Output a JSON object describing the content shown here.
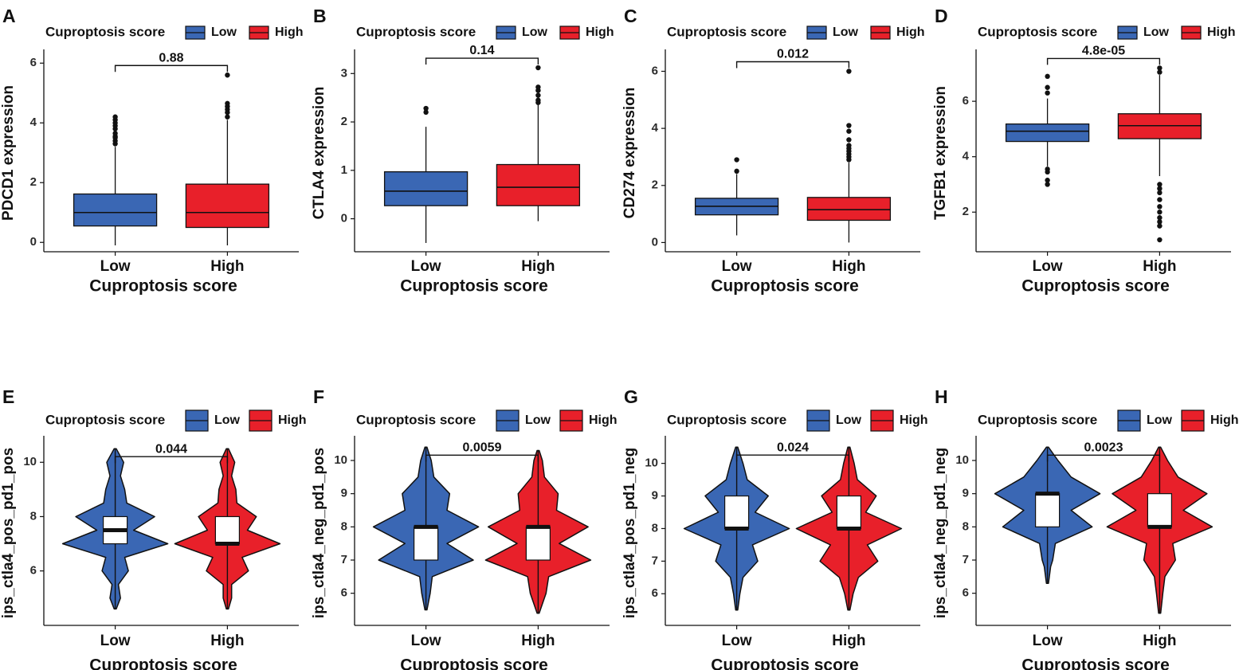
{
  "colors": {
    "low": "#3A67B4",
    "high": "#E8202A",
    "box_inner": "#ffffff",
    "ink": "#111111"
  },
  "chart_data": [
    {
      "panel": "A",
      "type": "boxplot",
      "legend_title": "Cuproptosis score",
      "legend_labels": [
        "Low",
        "High"
      ],
      "categories": [
        "Low",
        "High"
      ],
      "xlabel": "Cuproptosis score",
      "ylabel": "PDCD1 expression",
      "yticks": [
        0,
        2,
        4,
        6
      ],
      "ylim": [
        -0.1,
        6.3
      ],
      "series": [
        {
          "name": "Low",
          "q1": 0.55,
          "median": 1.0,
          "q3": 1.62,
          "whisker_low": -0.1,
          "whisker_high": 3.2,
          "outliers": [
            3.3,
            3.4,
            3.5,
            3.55,
            3.65,
            3.8,
            3.9,
            4.0,
            4.1,
            4.2
          ]
        },
        {
          "name": "High",
          "q1": 0.5,
          "median": 1.0,
          "q3": 1.95,
          "whisker_low": -0.1,
          "whisker_high": 4.1,
          "outliers": [
            4.2,
            4.35,
            4.45,
            4.55,
            4.65,
            5.6
          ]
        }
      ],
      "pvalue": "0.88"
    },
    {
      "panel": "B",
      "type": "boxplot",
      "legend_title": "Cuproptosis score",
      "legend_labels": [
        "Low",
        "High"
      ],
      "categories": [
        "Low",
        "High"
      ],
      "xlabel": "Cuproptosis score",
      "ylabel": "CTLA4 expression",
      "yticks": [
        0,
        1,
        2,
        3
      ],
      "ylim": [
        -0.55,
        3.4
      ],
      "series": [
        {
          "name": "Low",
          "q1": 0.27,
          "median": 0.57,
          "q3": 0.97,
          "whisker_low": -0.5,
          "whisker_high": 1.9,
          "outliers": [
            2.2,
            2.28
          ]
        },
        {
          "name": "High",
          "q1": 0.27,
          "median": 0.65,
          "q3": 1.12,
          "whisker_low": -0.05,
          "whisker_high": 2.35,
          "outliers": [
            2.4,
            2.45,
            2.55,
            2.65,
            2.72,
            3.12
          ]
        }
      ],
      "pvalue": "0.14"
    },
    {
      "panel": "C",
      "type": "boxplot",
      "legend_title": "Cuproptosis score",
      "legend_labels": [
        "Low",
        "High"
      ],
      "categories": [
        "Low",
        "High"
      ],
      "xlabel": "Cuproptosis score",
      "ylabel": "CD274 expression",
      "yticks": [
        0,
        2,
        4,
        6
      ],
      "ylim": [
        -0.1,
        6.6
      ],
      "series": [
        {
          "name": "Low",
          "q1": 0.97,
          "median": 1.27,
          "q3": 1.55,
          "whisker_low": 0.25,
          "whisker_high": 2.4,
          "outliers": [
            2.5,
            2.9
          ]
        },
        {
          "name": "High",
          "q1": 0.78,
          "median": 1.15,
          "q3": 1.58,
          "whisker_low": 0.0,
          "whisker_high": 2.8,
          "outliers": [
            2.9,
            3.0,
            3.1,
            3.2,
            3.3,
            3.4,
            3.6,
            3.9,
            4.1,
            6.0
          ]
        }
      ],
      "pvalue": "0.012"
    },
    {
      "panel": "D",
      "type": "boxplot",
      "legend_title": "Cuproptosis score",
      "legend_labels": [
        "Low",
        "High"
      ],
      "categories": [
        "Low",
        "High"
      ],
      "xlabel": "Cuproptosis score",
      "ylabel": "TGFB1 expression",
      "yticks": [
        2,
        4,
        6
      ],
      "ylim": [
        0.8,
        7.7
      ],
      "series": [
        {
          "name": "Low",
          "q1": 4.55,
          "median": 4.92,
          "q3": 5.18,
          "whisker_low": 3.65,
          "whisker_high": 6.1,
          "outliers": [
            3.0,
            3.15,
            3.45,
            3.55,
            6.3,
            6.5,
            6.9
          ]
        },
        {
          "name": "High",
          "q1": 4.65,
          "median": 5.12,
          "q3": 5.55,
          "whisker_low": 3.3,
          "whisker_high": 6.95,
          "outliers": [
            1.0,
            1.5,
            1.65,
            1.8,
            2.0,
            2.2,
            2.45,
            2.7,
            2.85,
            3.0,
            7.05,
            7.2
          ]
        }
      ],
      "pvalue": "4.8e-05"
    },
    {
      "panel": "E",
      "type": "violin",
      "legend_title": "Cuproptosis score",
      "legend_labels": [
        "Low",
        "High"
      ],
      "categories": [
        "Low",
        "High"
      ],
      "xlabel": "Cuproptosis score",
      "ylabel": "ips_ctla4_pos_pd1_pos",
      "yticks": [
        6,
        8,
        10
      ],
      "ylim": [
        4.2,
        10.8
      ],
      "series": [
        {
          "name": "Low",
          "ymin": 4.6,
          "ymax": 10.5,
          "q1": 7.0,
          "median": 7.5,
          "q3": 8.0,
          "density": [
            [
              4.6,
              0.02
            ],
            [
              5.0,
              0.1
            ],
            [
              5.5,
              0.06
            ],
            [
              6.0,
              0.25
            ],
            [
              6.5,
              0.18
            ],
            [
              7.0,
              1.0
            ],
            [
              7.5,
              0.35
            ],
            [
              8.0,
              0.75
            ],
            [
              8.5,
              0.22
            ],
            [
              9.0,
              0.18
            ],
            [
              9.5,
              0.1
            ],
            [
              10.0,
              0.16
            ],
            [
              10.5,
              0.02
            ]
          ]
        },
        {
          "name": "High",
          "ymin": 4.6,
          "ymax": 10.5,
          "q1": 7.0,
          "median": 7.0,
          "q3": 8.0,
          "density": [
            [
              4.6,
              0.02
            ],
            [
              5.0,
              0.08
            ],
            [
              5.5,
              0.08
            ],
            [
              6.0,
              0.4
            ],
            [
              6.5,
              0.28
            ],
            [
              7.0,
              1.0
            ],
            [
              7.5,
              0.38
            ],
            [
              8.0,
              0.55
            ],
            [
              8.5,
              0.18
            ],
            [
              9.0,
              0.16
            ],
            [
              9.5,
              0.08
            ],
            [
              10.0,
              0.14
            ],
            [
              10.5,
              0.02
            ]
          ]
        }
      ],
      "pvalue": "0.044"
    },
    {
      "panel": "F",
      "type": "violin",
      "legend_title": "Cuproptosis score",
      "legend_labels": [
        "Low",
        "High"
      ],
      "categories": [
        "Low",
        "High"
      ],
      "xlabel": "Cuproptosis score",
      "ylabel": "ips_ctla4_neg_pd1_pos",
      "yticks": [
        6,
        7,
        8,
        9,
        10
      ],
      "ylim": [
        5.2,
        10.6
      ],
      "series": [
        {
          "name": "Low",
          "ymin": 5.5,
          "ymax": 10.4,
          "q1": 7.0,
          "median": 8.0,
          "q3": 8.0,
          "density": [
            [
              5.5,
              0.02
            ],
            [
              6.0,
              0.08
            ],
            [
              6.5,
              0.12
            ],
            [
              7.0,
              0.9
            ],
            [
              7.5,
              0.4
            ],
            [
              8.0,
              1.0
            ],
            [
              8.5,
              0.4
            ],
            [
              9.0,
              0.45
            ],
            [
              9.5,
              0.15
            ],
            [
              10.0,
              0.1
            ],
            [
              10.4,
              0.02
            ]
          ]
        },
        {
          "name": "High",
          "ymin": 5.4,
          "ymax": 10.3,
          "q1": 7.0,
          "median": 8.0,
          "q3": 8.0,
          "density": [
            [
              5.4,
              0.02
            ],
            [
              6.0,
              0.15
            ],
            [
              6.5,
              0.2
            ],
            [
              7.0,
              1.0
            ],
            [
              7.5,
              0.4
            ],
            [
              8.0,
              0.95
            ],
            [
              8.5,
              0.35
            ],
            [
              9.0,
              0.38
            ],
            [
              9.5,
              0.12
            ],
            [
              10.0,
              0.08
            ],
            [
              10.3,
              0.02
            ]
          ]
        }
      ],
      "pvalue": "0.0059"
    },
    {
      "panel": "G",
      "type": "violin",
      "legend_title": "Cuproptosis score",
      "legend_labels": [
        "Low",
        "High"
      ],
      "categories": [
        "Low",
        "High"
      ],
      "xlabel": "Cuproptosis score",
      "ylabel": "ips_ctla4_pos_pd1_neg",
      "yticks": [
        6,
        7,
        8,
        9,
        10
      ],
      "ylim": [
        5.2,
        10.7
      ],
      "series": [
        {
          "name": "Low",
          "ymin": 5.5,
          "ymax": 10.5,
          "q1": 8.0,
          "median": 8.0,
          "q3": 9.0,
          "density": [
            [
              5.5,
              0.02
            ],
            [
              6.0,
              0.06
            ],
            [
              6.5,
              0.12
            ],
            [
              7.0,
              0.4
            ],
            [
              7.5,
              0.3
            ],
            [
              8.0,
              1.0
            ],
            [
              8.5,
              0.35
            ],
            [
              9.0,
              0.6
            ],
            [
              9.5,
              0.2
            ],
            [
              10.0,
              0.12
            ],
            [
              10.5,
              0.02
            ]
          ]
        },
        {
          "name": "High",
          "ymin": 5.5,
          "ymax": 10.5,
          "q1": 8.0,
          "median": 8.0,
          "q3": 9.0,
          "density": [
            [
              5.5,
              0.02
            ],
            [
              6.0,
              0.08
            ],
            [
              6.5,
              0.18
            ],
            [
              7.0,
              0.55
            ],
            [
              7.5,
              0.35
            ],
            [
              8.0,
              1.0
            ],
            [
              8.5,
              0.32
            ],
            [
              9.0,
              0.52
            ],
            [
              9.5,
              0.16
            ],
            [
              10.0,
              0.1
            ],
            [
              10.5,
              0.02
            ]
          ]
        }
      ],
      "pvalue": "0.024"
    },
    {
      "panel": "H",
      "type": "violin",
      "legend_title": "Cuproptosis score",
      "legend_labels": [
        "Low",
        "High"
      ],
      "categories": [
        "Low",
        "High"
      ],
      "xlabel": "Cuproptosis score",
      "ylabel": "ips_ctla4_neg_pd1_neg",
      "yticks": [
        6,
        7,
        8,
        9,
        10
      ],
      "ylim": [
        5.2,
        10.6
      ],
      "series": [
        {
          "name": "Low",
          "ymin": 6.3,
          "ymax": 10.4,
          "q1": 8.0,
          "median": 9.0,
          "q3": 9.0,
          "density": [
            [
              6.3,
              0.02
            ],
            [
              6.8,
              0.06
            ],
            [
              7.0,
              0.1
            ],
            [
              7.5,
              0.15
            ],
            [
              8.0,
              0.85
            ],
            [
              8.5,
              0.45
            ],
            [
              9.0,
              1.0
            ],
            [
              9.5,
              0.45
            ],
            [
              10.0,
              0.2
            ],
            [
              10.4,
              0.02
            ]
          ]
        },
        {
          "name": "High",
          "ymin": 5.4,
          "ymax": 10.4,
          "q1": 8.0,
          "median": 8.0,
          "q3": 9.0,
          "density": [
            [
              5.4,
              0.02
            ],
            [
              6.0,
              0.06
            ],
            [
              6.5,
              0.1
            ],
            [
              7.0,
              0.3
            ],
            [
              7.5,
              0.25
            ],
            [
              8.0,
              1.0
            ],
            [
              8.5,
              0.45
            ],
            [
              9.0,
              0.9
            ],
            [
              9.5,
              0.35
            ],
            [
              10.0,
              0.15
            ],
            [
              10.4,
              0.02
            ]
          ]
        }
      ],
      "pvalue": "0.0023"
    }
  ]
}
